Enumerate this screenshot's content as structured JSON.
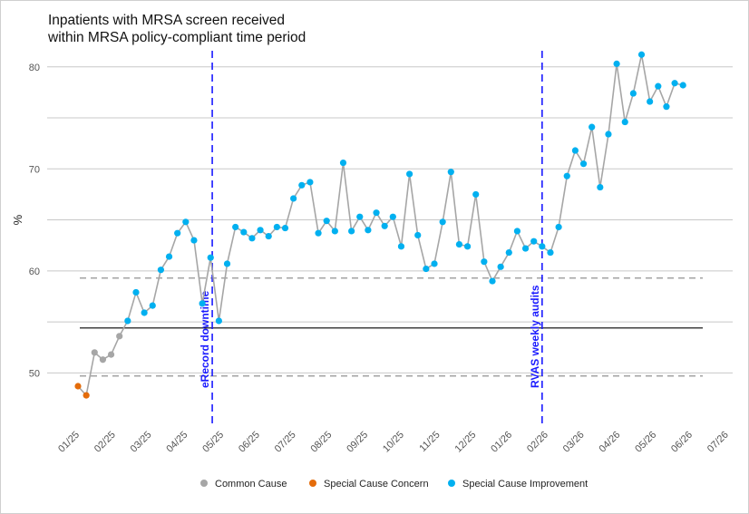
{
  "chart_data": {
    "type": "line",
    "title_lines": [
      "Inpatients with MRSA screen received",
      "within MRSA policy-compliant time period"
    ],
    "ylabel": "%",
    "xlabel": "",
    "ylim": [
      45.5,
      83
    ],
    "y_ticks": [
      50,
      60,
      70,
      80
    ],
    "x_ticks": [
      "01/25",
      "02/25",
      "03/25",
      "04/25",
      "05/25",
      "06/25",
      "07/25",
      "08/25",
      "09/25",
      "10/25",
      "11/25",
      "12/25",
      "01/26",
      "02/26",
      "03/26",
      "04/26",
      "05/26",
      "06/26",
      "07/26"
    ],
    "grid": true,
    "mean": 54.4,
    "upper_limit": 59.3,
    "lower_limit": 49.7,
    "legend_position": "bottom",
    "legend": [
      {
        "label": "Common Cause",
        "color": "#a6a6a6"
      },
      {
        "label": "Special Cause Concern",
        "color": "#e46c0a"
      },
      {
        "label": "Special Cause Improvement",
        "color": "#00b0f0"
      }
    ],
    "annotations": [
      {
        "label": "eRecord downtime",
        "x": 16.2
      },
      {
        "label": "RVAS weekly audits",
        "x": 56
      }
    ],
    "series": [
      {
        "values": [
          48.7,
          47.8,
          52.0,
          51.3,
          51.8,
          53.6,
          55.1,
          57.9,
          55.9,
          56.6,
          60.1,
          61.4,
          63.7,
          64.8,
          63.0,
          56.8,
          61.3,
          55.1,
          60.7,
          64.3,
          63.8,
          63.2,
          64.0,
          63.4,
          64.3,
          64.2,
          67.1,
          68.4,
          68.7,
          63.7,
          64.9,
          63.9,
          70.6,
          63.9,
          65.3,
          64.0,
          65.7,
          64.4,
          65.3,
          62.4,
          69.5,
          63.5,
          60.2,
          60.7,
          64.8,
          69.7,
          62.6,
          62.4,
          67.5,
          60.9,
          59.0,
          60.4,
          61.8,
          63.9,
          62.2,
          62.9,
          62.4,
          61.8,
          64.3,
          69.3,
          71.8,
          70.5,
          74.1,
          68.2,
          73.4,
          80.3,
          74.6,
          77.4,
          81.2,
          76.6,
          78.1,
          76.1,
          78.4,
          78.2
        ],
        "status": [
          "concern",
          "concern",
          "common",
          "common",
          "common",
          "common",
          "improve",
          "improve",
          "improve",
          "improve",
          "improve",
          "improve",
          "improve",
          "improve",
          "improve",
          "improve",
          "improve",
          "improve",
          "improve",
          "improve",
          "improve",
          "improve",
          "improve",
          "improve",
          "improve",
          "improve",
          "improve",
          "improve",
          "improve",
          "improve",
          "improve",
          "improve",
          "improve",
          "improve",
          "improve",
          "improve",
          "improve",
          "improve",
          "improve",
          "improve",
          "improve",
          "improve",
          "improve",
          "improve",
          "improve",
          "improve",
          "improve",
          "improve",
          "improve",
          "improve",
          "improve",
          "improve",
          "improve",
          "improve",
          "improve",
          "improve",
          "improve",
          "improve",
          "improve",
          "improve",
          "improve",
          "improve",
          "improve",
          "improve",
          "improve",
          "improve",
          "improve",
          "improve",
          "improve",
          "improve",
          "improve",
          "improve",
          "improve",
          "improve"
        ]
      }
    ]
  },
  "colors": {
    "line": "#a6a6a6",
    "common": "#a6a6a6",
    "concern": "#e46c0a",
    "improve": "#00b0f0",
    "annotation": "#1a1aff",
    "mean": "#000000",
    "limit": "#a6a6a6",
    "grid": "#c8c8c8"
  }
}
